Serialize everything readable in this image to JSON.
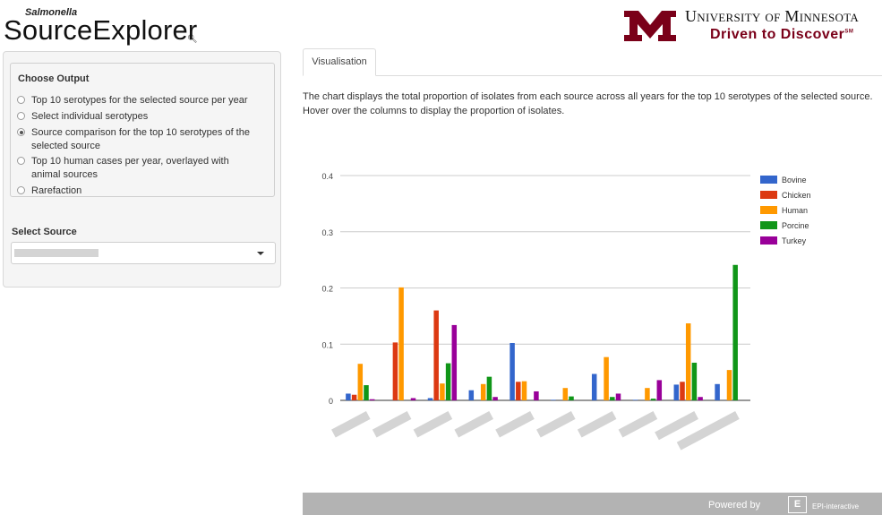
{
  "header": {
    "brand_small": "Salmonella",
    "brand_big": "SourceExplorer",
    "university": "University of Minnesota",
    "tagline": "Driven to Discover",
    "tagline_mark": "SM"
  },
  "sidebar": {
    "heading": "Choose Output",
    "options": [
      {
        "label": "Top 10 serotypes for the selected source per year",
        "selected": false
      },
      {
        "label": "Select individual serotypes",
        "selected": false
      },
      {
        "label": "Source comparison for the top 10 serotypes of the selected source",
        "selected": true
      },
      {
        "label": "Top 10 human cases per year, overlayed with animal sources",
        "selected": false
      },
      {
        "label": "Rarefaction",
        "selected": false
      }
    ],
    "source_label": "Select Source",
    "source_value": ""
  },
  "main": {
    "tab": "Visualisation",
    "description": "The chart displays the total proportion of isolates from each source across all years for the top 10 serotypes of the selected source. Hover over the columns to display the proportion of isolates."
  },
  "chart_data": {
    "type": "bar",
    "title": "",
    "xlabel": "",
    "ylabel": "",
    "ylim": [
      0,
      0.4
    ],
    "yticks": [
      "0",
      "0.1",
      "0.2",
      "0.3",
      "0.4"
    ],
    "grid": true,
    "legend_position": "top-right",
    "categories": [
      "",
      "",
      "",
      "",
      "",
      "",
      "",
      "",
      "",
      ""
    ],
    "series": [
      {
        "name": "Bovine",
        "color": "#3366cc",
        "values": [
          0.012,
          0.0,
          0.004,
          0.018,
          0.102,
          0.001,
          0.047,
          0.001,
          0.028,
          0.029
        ]
      },
      {
        "name": "Chicken",
        "color": "#dc3912",
        "values": [
          0.01,
          0.103,
          0.16,
          0.0,
          0.033,
          0.0,
          0.0,
          0.0,
          0.033,
          0.0
        ]
      },
      {
        "name": "Human",
        "color": "#ff9900",
        "values": [
          0.065,
          0.201,
          0.03,
          0.029,
          0.034,
          0.022,
          0.077,
          0.022,
          0.137,
          0.054
        ]
      },
      {
        "name": "Porcine",
        "color": "#109618",
        "values": [
          0.027,
          0.0,
          0.066,
          0.042,
          0.0,
          0.007,
          0.006,
          0.003,
          0.067,
          0.241
        ]
      },
      {
        "name": "Turkey",
        "color": "#990099",
        "values": [
          0.002,
          0.004,
          0.134,
          0.006,
          0.016,
          0.0,
          0.012,
          0.036,
          0.006,
          0.0
        ]
      }
    ]
  },
  "footer": {
    "powered_by": "Powered by",
    "logo_mark": "E",
    "company": "EPI-interactive"
  }
}
